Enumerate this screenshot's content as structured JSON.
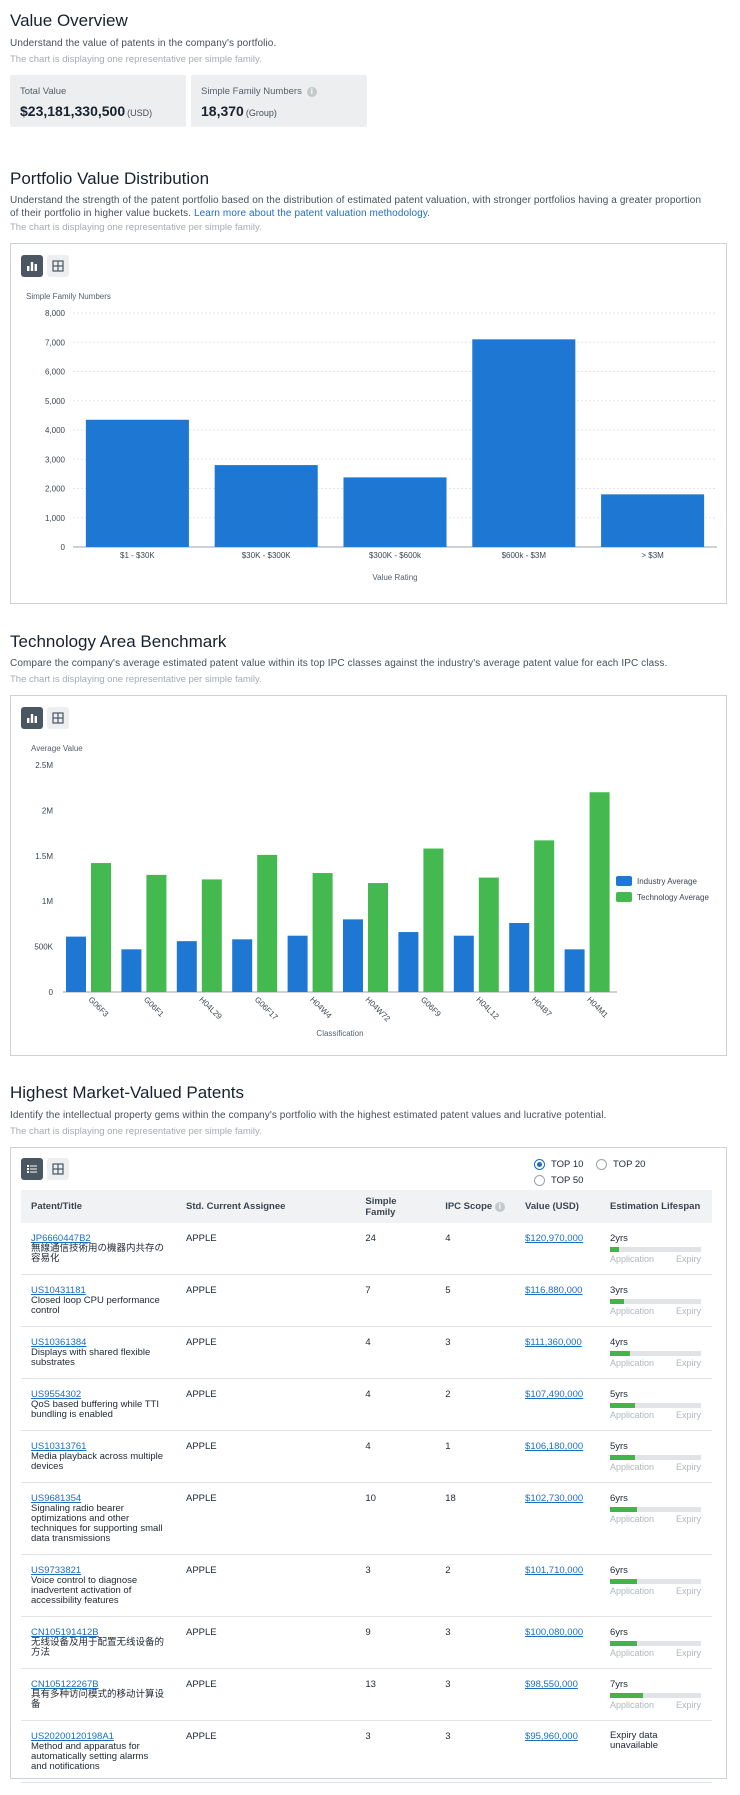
{
  "overview": {
    "title": "Value Overview",
    "desc": "Understand the value of patents in the company's portfolio.",
    "note": "The chart is displaying one representative per simple family.",
    "total_label": "Total Value",
    "total_value": "$23,181,330,500",
    "total_unit": "(USD)",
    "family_label": "Simple Family Numbers",
    "family_value": "18,370",
    "family_unit": "(Group)"
  },
  "distribution": {
    "title": "Portfolio Value Distribution",
    "desc": "Understand the strength of the patent portfolio based on the distribution of estimated patent valuation, with stronger portfolios having a greater proportion of their portfolio in higher value buckets.",
    "link": "Learn more about the patent valuation methodology.",
    "note": "The chart is displaying one representative per simple family."
  },
  "benchmark": {
    "title": "Technology Area Benchmark",
    "desc": "Compare the company's average estimated patent value within its top IPC classes against the industry's average patent value for each IPC class.",
    "note": "The chart is displaying one representative per simple family."
  },
  "patents": {
    "title": "Highest Market-Valued Patents",
    "desc": "Identify the intellectual property gems within the company's portfolio with the highest estimated patent values and lucrative potential.",
    "note": "The chart is displaying one representative per simple family.",
    "radio": [
      "TOP 10",
      "TOP 20",
      "TOP 50"
    ],
    "selected": "TOP 10",
    "headers": [
      "Patent/Title",
      "Std. Current Assignee",
      "Simple Family",
      "IPC Scope",
      "Value (USD)",
      "Estimation Lifespan"
    ],
    "lifespan_app": "Application",
    "lifespan_exp": "Expiry",
    "rows": [
      {
        "num": "JP6660447B2",
        "title": "無線通信技術用の機器内共存の容易化",
        "assignee": "APPLE",
        "family": "24",
        "ipc": "4",
        "value": "$120,970,000",
        "life": "2yrs",
        "fill": 0.1
      },
      {
        "num": "US10431181",
        "title": "Closed loop CPU performance control",
        "assignee": "APPLE",
        "family": "7",
        "ipc": "5",
        "value": "$116,880,000",
        "life": "3yrs",
        "fill": 0.15
      },
      {
        "num": "US10361384",
        "title": "Displays with shared flexible substrates",
        "assignee": "APPLE",
        "family": "4",
        "ipc": "3",
        "value": "$111,360,000",
        "life": "4yrs",
        "fill": 0.22
      },
      {
        "num": "US9554302",
        "title": "QoS based buffering while TTI bundling is enabled",
        "assignee": "APPLE",
        "family": "4",
        "ipc": "2",
        "value": "$107,490,000",
        "life": "5yrs",
        "fill": 0.27
      },
      {
        "num": "US10313761",
        "title": "Media playback across multiple devices",
        "assignee": "APPLE",
        "family": "4",
        "ipc": "1",
        "value": "$106,180,000",
        "life": "5yrs",
        "fill": 0.27
      },
      {
        "num": "US9681354",
        "title": "Signaling radio bearer optimizations and other techniques for supporting small data transmissions",
        "assignee": "APPLE",
        "family": "10",
        "ipc": "18",
        "value": "$102,730,000",
        "life": "6yrs",
        "fill": 0.3
      },
      {
        "num": "US9733821",
        "title": "Voice control to diagnose inadvertent activation of accessibility features",
        "assignee": "APPLE",
        "family": "3",
        "ipc": "2",
        "value": "$101,710,000",
        "life": "6yrs",
        "fill": 0.3
      },
      {
        "num": "CN105191412B",
        "title": "无线设备及用于配置无线设备的方法",
        "assignee": "APPLE",
        "family": "9",
        "ipc": "3",
        "value": "$100,080,000",
        "life": "6yrs",
        "fill": 0.3
      },
      {
        "num": "CN105122267B",
        "title": "具有多种访问模式的移动计算设备",
        "assignee": "APPLE",
        "family": "13",
        "ipc": "3",
        "value": "$98,550,000",
        "life": "7yrs",
        "fill": 0.36
      },
      {
        "num": "US20200120198A1",
        "title": "Method and apparatus for automatically setting alarms and notifications",
        "assignee": "APPLE",
        "family": "3",
        "ipc": "3",
        "value": "$95,960,000",
        "life": "Expiry data unavailable",
        "fill": null
      }
    ]
  },
  "colors": {
    "industry": "#1f77d4",
    "technology": "#43b94f",
    "link": "#1b6ec2"
  },
  "chart_data": [
    {
      "type": "bar",
      "ylabel": "Simple Family Numbers",
      "xlabel": "Value Rating",
      "ylim": [
        0,
        8000
      ],
      "yticks": [
        "0",
        "1,000",
        "2,000",
        "3,000",
        "4,000",
        "5,000",
        "6,000",
        "7,000",
        "8,000"
      ],
      "categories": [
        "$1 - $30K",
        "$30K - $300K",
        "$300K - $600k",
        "$600k - $3M",
        "> $3M"
      ],
      "values": [
        4350,
        2800,
        2380,
        7100,
        1800
      ],
      "grid": true
    },
    {
      "type": "bar",
      "ylabel": "Average Value",
      "xlabel": "Classification",
      "ylim": [
        0,
        2500000
      ],
      "yticks": [
        "0",
        "500K",
        "1M",
        "1.5M",
        "2M",
        "2.5M"
      ],
      "categories": [
        "G06F3",
        "G06F1",
        "H04L29",
        "G06F17",
        "H04W4",
        "H04W72",
        "G06F9",
        "H04L12",
        "H04B7",
        "H04M1"
      ],
      "series": [
        {
          "name": "Industry Average",
          "values": [
            610000,
            470000,
            560000,
            580000,
            620000,
            800000,
            660000,
            620000,
            760000,
            470000
          ]
        },
        {
          "name": "Technology Average",
          "values": [
            1420000,
            1290000,
            1240000,
            1510000,
            1310000,
            1200000,
            1580000,
            1260000,
            1670000,
            2200000
          ]
        }
      ],
      "legend": "right"
    }
  ]
}
